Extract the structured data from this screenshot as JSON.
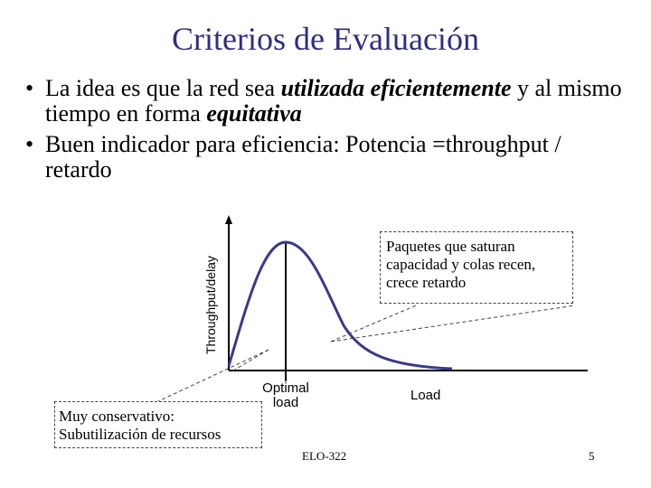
{
  "slide": {
    "title": "Criterios de Evaluación",
    "bullets": [
      {
        "parts": [
          {
            "text": "La idea es que la red sea ",
            "style": "normal"
          },
          {
            "text": "utilizada eficientemente",
            "style": "bold-italic"
          },
          {
            "text": " y al mismo tiempo en forma ",
            "style": "normal"
          },
          {
            "text": "equitativa",
            "style": "bold-italic"
          }
        ]
      },
      {
        "parts": [
          {
            "text": "Buen indicador para eficiencia: Potencia =throughput / retardo",
            "style": "normal"
          }
        ]
      }
    ],
    "bullet_glyph": "•"
  },
  "diagram": {
    "y_axis_label": "Throughput/delay",
    "x_axis_label": "Load",
    "optimal_label_line1": "Optimal",
    "optimal_label_line2": "load",
    "curve_color": "#3a3a8a",
    "callout_right": {
      "line1": "Paquetes que saturan",
      "line2": "capacidad y colas recen,",
      "line3": "crece retardo"
    },
    "callout_left": {
      "line1": "Muy conservativo:",
      "line2": "Subutilización de recursos"
    }
  },
  "footer": {
    "center": "ELO-322",
    "page": "5"
  }
}
